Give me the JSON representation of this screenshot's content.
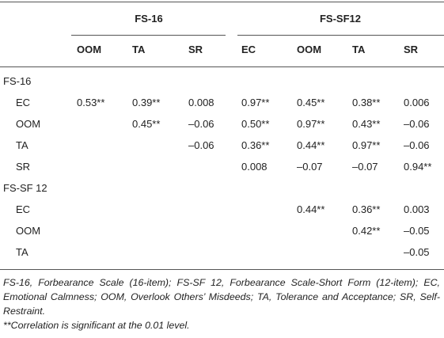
{
  "header": {
    "groups": [
      {
        "label": "FS-16",
        "columns": [
          "OOM",
          "TA",
          "SR"
        ]
      },
      {
        "label": "FS-SF12",
        "columns": [
          "EC",
          "OOM",
          "TA",
          "SR"
        ]
      }
    ]
  },
  "sections": [
    {
      "label": "FS-16",
      "rows": [
        {
          "label": "EC",
          "cells": [
            "0.53**",
            "0.39**",
            "0.008",
            "0.97**",
            "0.45**",
            "0.38**",
            "0.006"
          ]
        },
        {
          "label": "OOM",
          "cells": [
            null,
            "0.45**",
            "–0.06",
            "0.50**",
            "0.97**",
            "0.43**",
            "–0.06"
          ]
        },
        {
          "label": "TA",
          "cells": [
            null,
            null,
            "–0.06",
            "0.36**",
            "0.44**",
            "0.97**",
            "–0.06"
          ]
        },
        {
          "label": "SR",
          "cells": [
            null,
            null,
            null,
            "0.008",
            "–0.07",
            "–0.07",
            "0.94**"
          ]
        }
      ]
    },
    {
      "label": "FS-SF 12",
      "rows": [
        {
          "label": "EC",
          "cells": [
            null,
            null,
            null,
            null,
            "0.44**",
            "0.36**",
            "0.003"
          ]
        },
        {
          "label": "OOM",
          "cells": [
            null,
            null,
            null,
            null,
            null,
            "0.42**",
            "–0.05"
          ]
        },
        {
          "label": "TA",
          "cells": [
            null,
            null,
            null,
            null,
            null,
            null,
            "–0.05"
          ]
        }
      ]
    }
  ],
  "footnotes": [
    "FS-16, Forbearance Scale (16-item); FS-SF 12, Forbearance Scale-Short Form (12-item); EC, Emotional Calmness; OOM, Overlook Others’ Misdeeds; TA, Tolerance and Acceptance; SR, Self-Restraint.",
    "**Correlation is significant at the 0.01 level."
  ]
}
